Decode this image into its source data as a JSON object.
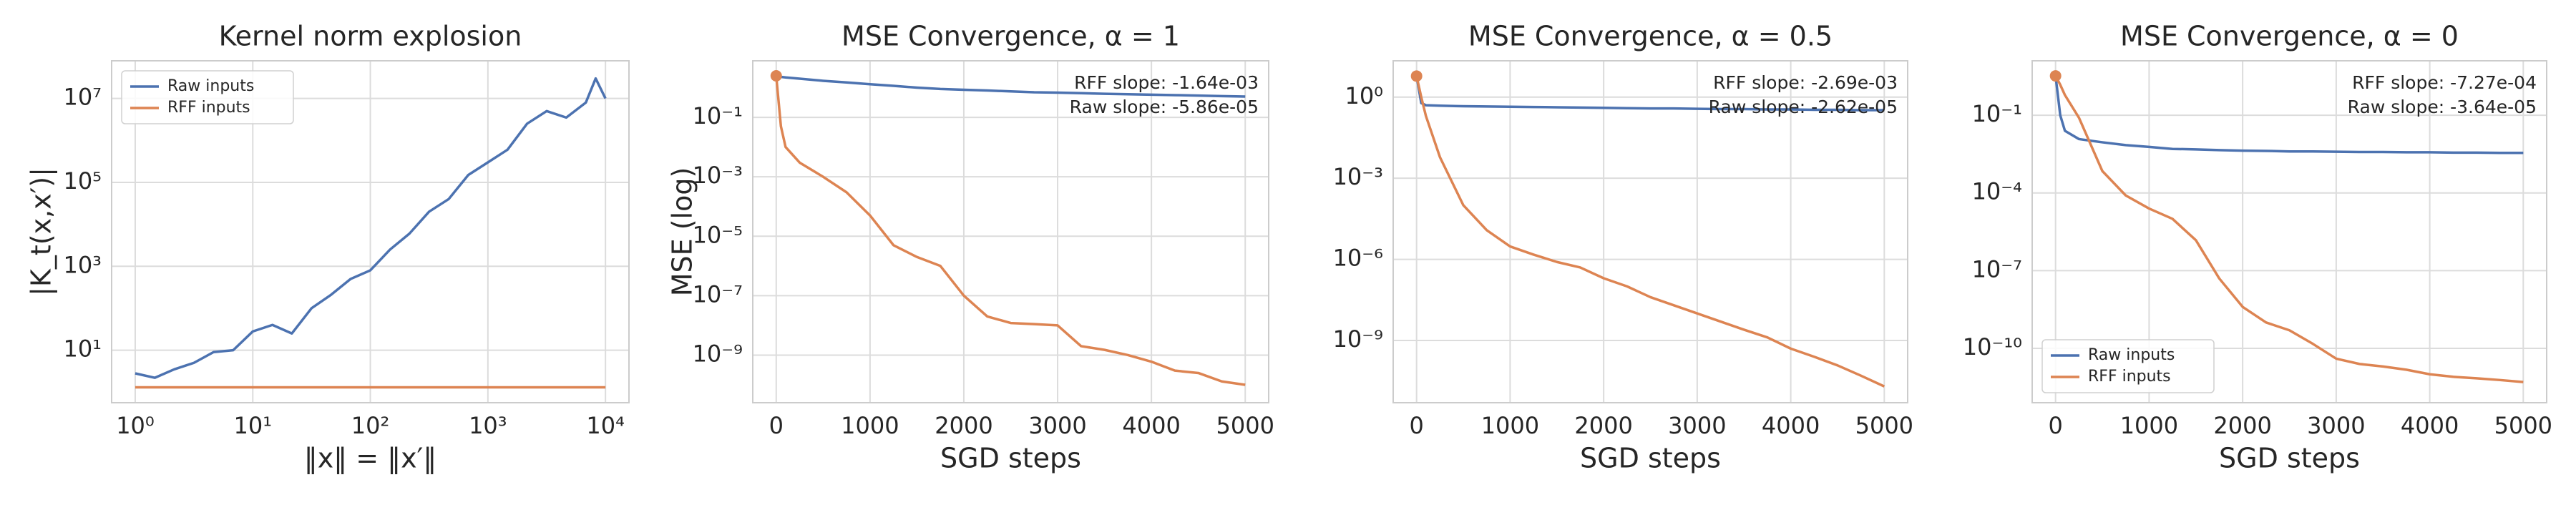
{
  "chart_data": [
    {
      "type": "line",
      "title": "Kernel norm explosion",
      "xlabel": "‖x‖ = ‖x′‖",
      "ylabel": "|K_t(x,x′)|",
      "xscale": "log",
      "yscale": "log",
      "grid": true,
      "legend": "upper left",
      "x": [
        1,
        1.47,
        2.15,
        3.16,
        4.64,
        6.81,
        10,
        14.7,
        21.5,
        31.6,
        46.4,
        68.1,
        100,
        147,
        215,
        316,
        464,
        681,
        1000,
        1468,
        2154,
        3162,
        4642,
        6813,
        8254,
        10000
      ],
      "series": [
        {
          "name": "Raw inputs",
          "color": "#4c72b0",
          "values": [
            2.8,
            2.2,
            3.5,
            5,
            9,
            10,
            28,
            40,
            25,
            100,
            210,
            500,
            800,
            2500,
            6000,
            20000,
            40000,
            150000,
            300000,
            600000,
            2500000,
            5000000,
            3500000,
            8000000,
            30000000,
            10000000
          ]
        },
        {
          "name": "RFF inputs",
          "color": "#dd8452",
          "values": [
            1.3,
            1.3,
            1.3,
            1.3,
            1.3,
            1.3,
            1.3,
            1.3,
            1.3,
            1.3,
            1.3,
            1.3,
            1.3,
            1.3,
            1.3,
            1.3,
            1.3,
            1.3,
            1.3,
            1.3,
            1.3,
            1.3,
            1.3,
            1.3,
            1.3,
            1.3
          ]
        }
      ],
      "xlim": [
        0.63,
        15849
      ],
      "ylim": [
        0.56,
        79000000
      ],
      "xticks": [
        {
          "value": 1,
          "label": "10⁰"
        },
        {
          "value": 10,
          "label": "10¹"
        },
        {
          "value": 100,
          "label": "10²"
        },
        {
          "value": 1000,
          "label": "10³"
        },
        {
          "value": 10000,
          "label": "10⁴"
        }
      ],
      "yticks": [
        {
          "value": 10,
          "label": "10¹"
        },
        {
          "value": 1000,
          "label": "10³"
        },
        {
          "value": 100000,
          "label": "10⁵"
        },
        {
          "value": 10000000,
          "label": "10⁷"
        }
      ]
    },
    {
      "type": "line",
      "title": "MSE Convergence, α = 1",
      "xlabel": "SGD steps",
      "ylabel": "MSE (log)",
      "xscale": "linear",
      "yscale": "log",
      "grid": true,
      "start_marker": true,
      "annotations": [
        "RFF slope: -1.64e-03",
        "Raw slope: -5.86e-05"
      ],
      "x": [
        0,
        50,
        100,
        250,
        500,
        750,
        1000,
        1250,
        1500,
        1750,
        2000,
        2250,
        2500,
        2750,
        3000,
        3250,
        3500,
        3750,
        4000,
        4250,
        4500,
        4750,
        5000
      ],
      "series": [
        {
          "name": "Raw inputs",
          "color": "#4c72b0",
          "values": [
            2.5,
            2.3,
            2.2,
            2,
            1.7,
            1.5,
            1.3,
            1.15,
            1.0,
            0.9,
            0.85,
            0.8,
            0.75,
            0.7,
            0.68,
            0.65,
            0.62,
            0.6,
            0.58,
            0.56,
            0.54,
            0.52,
            0.5
          ]
        },
        {
          "name": "RFF inputs",
          "color": "#dd8452",
          "values": [
            2.5,
            0.05,
            0.01,
            0.003,
            0.001,
            0.0003,
            5e-05,
            5e-06,
            2e-06,
            1e-06,
            1e-07,
            2e-08,
            1.2e-08,
            1.1e-08,
            1e-08,
            2e-09,
            1.5e-09,
            1e-09,
            6e-10,
            3e-10,
            2.5e-10,
            1.3e-10,
            1e-10
          ]
        }
      ],
      "xlim": [
        -250,
        5250
      ],
      "ylim": [
        2.5e-11,
        8
      ],
      "xticks": [
        0,
        1000,
        2000,
        3000,
        4000,
        5000
      ],
      "yticks": [
        {
          "value": 0.1,
          "label": "10⁻¹"
        },
        {
          "value": 0.001,
          "label": "10⁻³"
        },
        {
          "value": 1e-05,
          "label": "10⁻⁵"
        },
        {
          "value": 1e-07,
          "label": "10⁻⁷"
        },
        {
          "value": 1e-09,
          "label": "10⁻⁹"
        }
      ]
    },
    {
      "type": "line",
      "title": "MSE Convergence, α = 0.5",
      "xlabel": "SGD steps",
      "xscale": "linear",
      "yscale": "log",
      "grid": true,
      "start_marker": true,
      "annotations": [
        "RFF slope: -2.69e-03",
        "Raw slope: -2.62e-05"
      ],
      "x": [
        0,
        50,
        100,
        250,
        500,
        750,
        1000,
        1250,
        1500,
        1750,
        2000,
        2250,
        2500,
        2750,
        3000,
        3250,
        3500,
        3750,
        4000,
        4250,
        4500,
        4750,
        5000
      ],
      "series": [
        {
          "name": "Raw inputs",
          "color": "#4c72b0",
          "values": [
            6,
            0.6,
            0.5,
            0.48,
            0.46,
            0.45,
            0.44,
            0.43,
            0.42,
            0.41,
            0.4,
            0.39,
            0.38,
            0.38,
            0.37,
            0.36,
            0.36,
            0.35,
            0.35,
            0.34,
            0.34,
            0.33,
            0.33
          ]
        },
        {
          "name": "RFF inputs",
          "color": "#dd8452",
          "values": [
            6,
            1,
            0.2,
            0.006,
            0.0001,
            1.2e-05,
            3e-06,
            1.5e-06,
            8e-07,
            5e-07,
            2e-07,
            1e-07,
            4e-08,
            2e-08,
            1e-08,
            5e-09,
            2.5e-09,
            1.3e-09,
            5e-10,
            2.5e-10,
            1.2e-10,
            5e-11,
            2e-11
          ]
        }
      ],
      "xlim": [
        -250,
        5250
      ],
      "ylim": [
        5e-12,
        22
      ],
      "xticks": [
        0,
        1000,
        2000,
        3000,
        4000,
        5000
      ],
      "yticks": [
        {
          "value": 1,
          "label": "10⁰"
        },
        {
          "value": 0.001,
          "label": "10⁻³"
        },
        {
          "value": 1e-06,
          "label": "10⁻⁶"
        },
        {
          "value": 1e-09,
          "label": "10⁻⁹"
        }
      ]
    },
    {
      "type": "line",
      "title": "MSE Convergence, α = 0",
      "xlabel": "SGD steps",
      "xscale": "linear",
      "yscale": "log",
      "grid": true,
      "start_marker": true,
      "legend": "lower left",
      "annotations": [
        "RFF slope: -7.27e-04",
        "Raw slope: -3.64e-05"
      ],
      "x": [
        0,
        50,
        100,
        250,
        500,
        750,
        1000,
        1250,
        1500,
        1750,
        2000,
        2250,
        2500,
        2750,
        3000,
        3250,
        3500,
        3750,
        4000,
        4250,
        4500,
        4750,
        5000
      ],
      "series": [
        {
          "name": "Raw inputs",
          "color": "#4c72b0",
          "values": [
            3.3,
            0.1,
            0.025,
            0.012,
            0.009,
            0.007,
            0.006,
            0.005,
            0.0048,
            0.0045,
            0.0043,
            0.0042,
            0.004,
            0.004,
            0.0039,
            0.0038,
            0.0038,
            0.0037,
            0.0037,
            0.0036,
            0.0036,
            0.0035,
            0.0035
          ]
        },
        {
          "name": "RFF inputs",
          "color": "#dd8452",
          "values": [
            3.3,
            1.5,
            0.6,
            0.08,
            0.0007,
            8e-05,
            2.5e-05,
            1e-05,
            1.5e-06,
            5e-08,
            4e-09,
            1e-09,
            5e-10,
            1.5e-10,
            4e-11,
            2.5e-11,
            2e-11,
            1.5e-11,
            1e-11,
            8e-12,
            7e-12,
            6e-12,
            5e-12
          ]
        }
      ],
      "xlim": [
        -250,
        5250
      ],
      "ylim": [
        8e-13,
        12.6
      ],
      "xticks": [
        0,
        1000,
        2000,
        3000,
        4000,
        5000
      ],
      "yticks": [
        {
          "value": 0.1,
          "label": "10⁻¹"
        },
        {
          "value": 0.0001,
          "label": "10⁻⁴"
        },
        {
          "value": 1e-07,
          "label": "10⁻⁷"
        },
        {
          "value": 1e-10,
          "label": "10⁻¹⁰"
        }
      ]
    }
  ]
}
